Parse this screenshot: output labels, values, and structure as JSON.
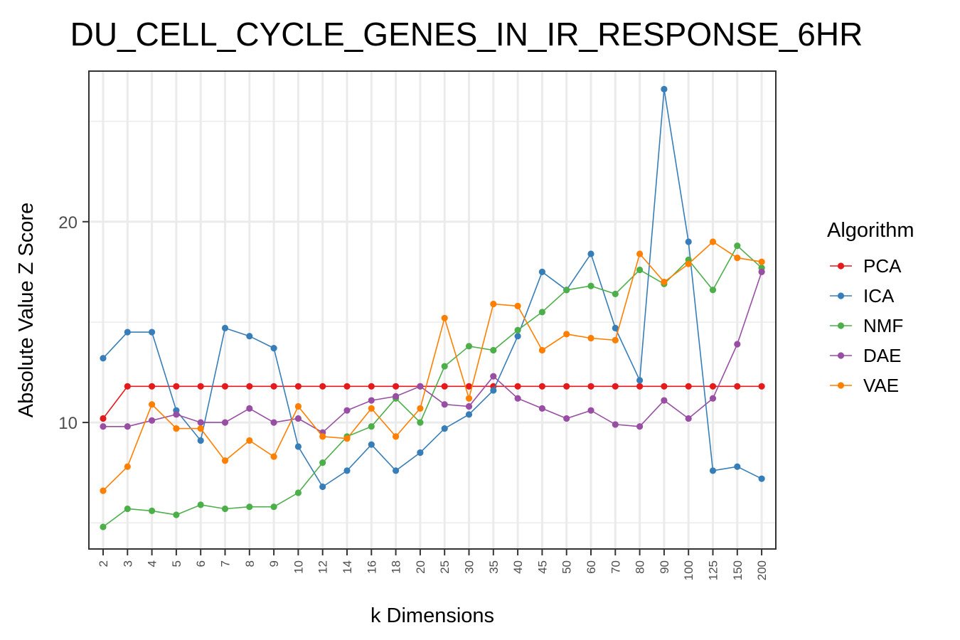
{
  "chart_data": {
    "type": "line",
    "title": "DU_CELL_CYCLE_GENES_IN_IR_RESPONSE_6HR",
    "xlabel": "k Dimensions",
    "ylabel": "Absolute Value Z Score",
    "categories": [
      "2",
      "3",
      "4",
      "5",
      "6",
      "7",
      "8",
      "9",
      "10",
      "12",
      "14",
      "16",
      "18",
      "20",
      "25",
      "30",
      "35",
      "40",
      "45",
      "50",
      "60",
      "70",
      "80",
      "90",
      "100",
      "125",
      "150",
      "200"
    ],
    "yticks": [
      10,
      20
    ],
    "ylim": [
      3.7,
      27.5
    ],
    "grid": true,
    "legend": {
      "title": "Algorithm",
      "position": "right"
    },
    "series": [
      {
        "name": "PCA",
        "color": "#E41A1C",
        "values": [
          10.2,
          11.8,
          11.8,
          11.8,
          11.8,
          11.8,
          11.8,
          11.8,
          11.8,
          11.8,
          11.8,
          11.8,
          11.8,
          11.8,
          11.8,
          11.8,
          11.8,
          11.8,
          11.8,
          11.8,
          11.8,
          11.8,
          11.8,
          11.8,
          11.8,
          11.8,
          11.8,
          11.8
        ]
      },
      {
        "name": "ICA",
        "color": "#377EB8",
        "values": [
          13.2,
          14.5,
          14.5,
          10.6,
          9.1,
          14.7,
          14.3,
          13.7,
          8.8,
          6.8,
          7.6,
          8.9,
          7.6,
          8.5,
          9.7,
          10.4,
          11.6,
          14.3,
          17.5,
          16.6,
          18.4,
          14.7,
          12.1,
          26.6,
          19.0,
          7.6,
          7.8,
          7.2
        ]
      },
      {
        "name": "NMF",
        "color": "#4DAF4A",
        "values": [
          4.8,
          5.7,
          5.6,
          5.4,
          5.9,
          5.7,
          5.8,
          5.8,
          6.5,
          8.0,
          9.3,
          9.8,
          11.2,
          10.0,
          12.8,
          13.8,
          13.6,
          14.6,
          15.5,
          16.6,
          16.8,
          16.4,
          17.6,
          16.9,
          18.1,
          16.6,
          18.8,
          17.7
        ]
      },
      {
        "name": "DAE",
        "color": "#984EA3",
        "values": [
          9.8,
          9.8,
          10.1,
          10.4,
          10.0,
          10.0,
          10.7,
          10.0,
          10.2,
          9.5,
          10.6,
          11.1,
          11.3,
          11.8,
          10.9,
          10.8,
          12.3,
          11.2,
          10.7,
          10.2,
          10.6,
          9.9,
          9.8,
          11.1,
          10.2,
          11.2,
          13.9,
          17.5
        ]
      },
      {
        "name": "VAE",
        "color": "#FF7F00",
        "values": [
          6.6,
          7.8,
          10.9,
          9.7,
          9.7,
          8.1,
          9.1,
          8.3,
          10.8,
          9.3,
          9.2,
          10.7,
          9.3,
          10.7,
          15.2,
          11.2,
          15.9,
          15.8,
          13.6,
          14.4,
          14.2,
          14.1,
          18.4,
          17.0,
          17.9,
          19.0,
          18.2,
          18.0
        ]
      }
    ]
  }
}
